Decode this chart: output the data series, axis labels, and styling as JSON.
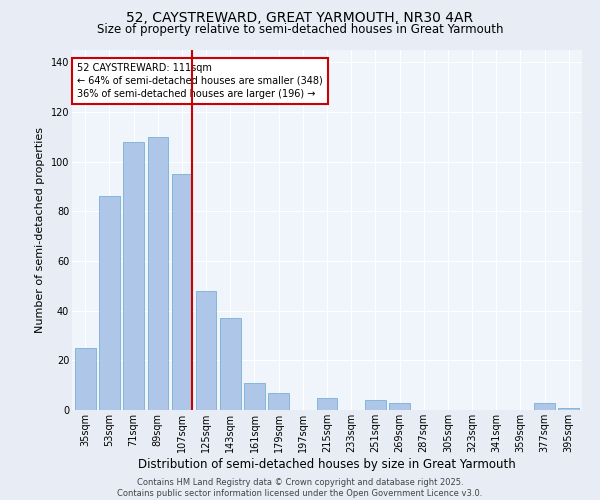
{
  "title": "52, CAYSTREWARD, GREAT YARMOUTH, NR30 4AR",
  "subtitle": "Size of property relative to semi-detached houses in Great Yarmouth",
  "xlabel": "Distribution of semi-detached houses by size in Great Yarmouth",
  "ylabel": "Number of semi-detached properties",
  "categories": [
    "35sqm",
    "53sqm",
    "71sqm",
    "89sqm",
    "107sqm",
    "125sqm",
    "143sqm",
    "161sqm",
    "179sqm",
    "197sqm",
    "215sqm",
    "233sqm",
    "251sqm",
    "269sqm",
    "287sqm",
    "305sqm",
    "323sqm",
    "341sqm",
    "359sqm",
    "377sqm",
    "395sqm"
  ],
  "values": [
    25,
    86,
    108,
    110,
    95,
    48,
    37,
    11,
    7,
    0,
    5,
    0,
    4,
    3,
    0,
    0,
    0,
    0,
    0,
    3,
    1
  ],
  "bar_color": "#aec6e8",
  "bar_edge_color": "#7aafd4",
  "property_label": "52 CAYSTREWARD: 111sqm",
  "pct_smaller": 64,
  "pct_larger": 36,
  "count_smaller": 348,
  "count_larger": 196,
  "vline_x_index": 4,
  "ylim": [
    0,
    145
  ],
  "yticks": [
    0,
    20,
    40,
    60,
    80,
    100,
    120,
    140
  ],
  "bg_color": "#e8ecf5",
  "plot_bg_color": "#f0f4fb",
  "grid_color": "#ffffff",
  "vline_color": "#cc0000",
  "annotation_box_color": "#cc0000",
  "footer_line1": "Contains HM Land Registry data © Crown copyright and database right 2025.",
  "footer_line2": "Contains public sector information licensed under the Open Government Licence v3.0.",
  "title_fontsize": 10,
  "subtitle_fontsize": 8.5,
  "xlabel_fontsize": 8.5,
  "ylabel_fontsize": 8,
  "tick_fontsize": 7,
  "annot_fontsize": 7,
  "footer_fontsize": 6
}
